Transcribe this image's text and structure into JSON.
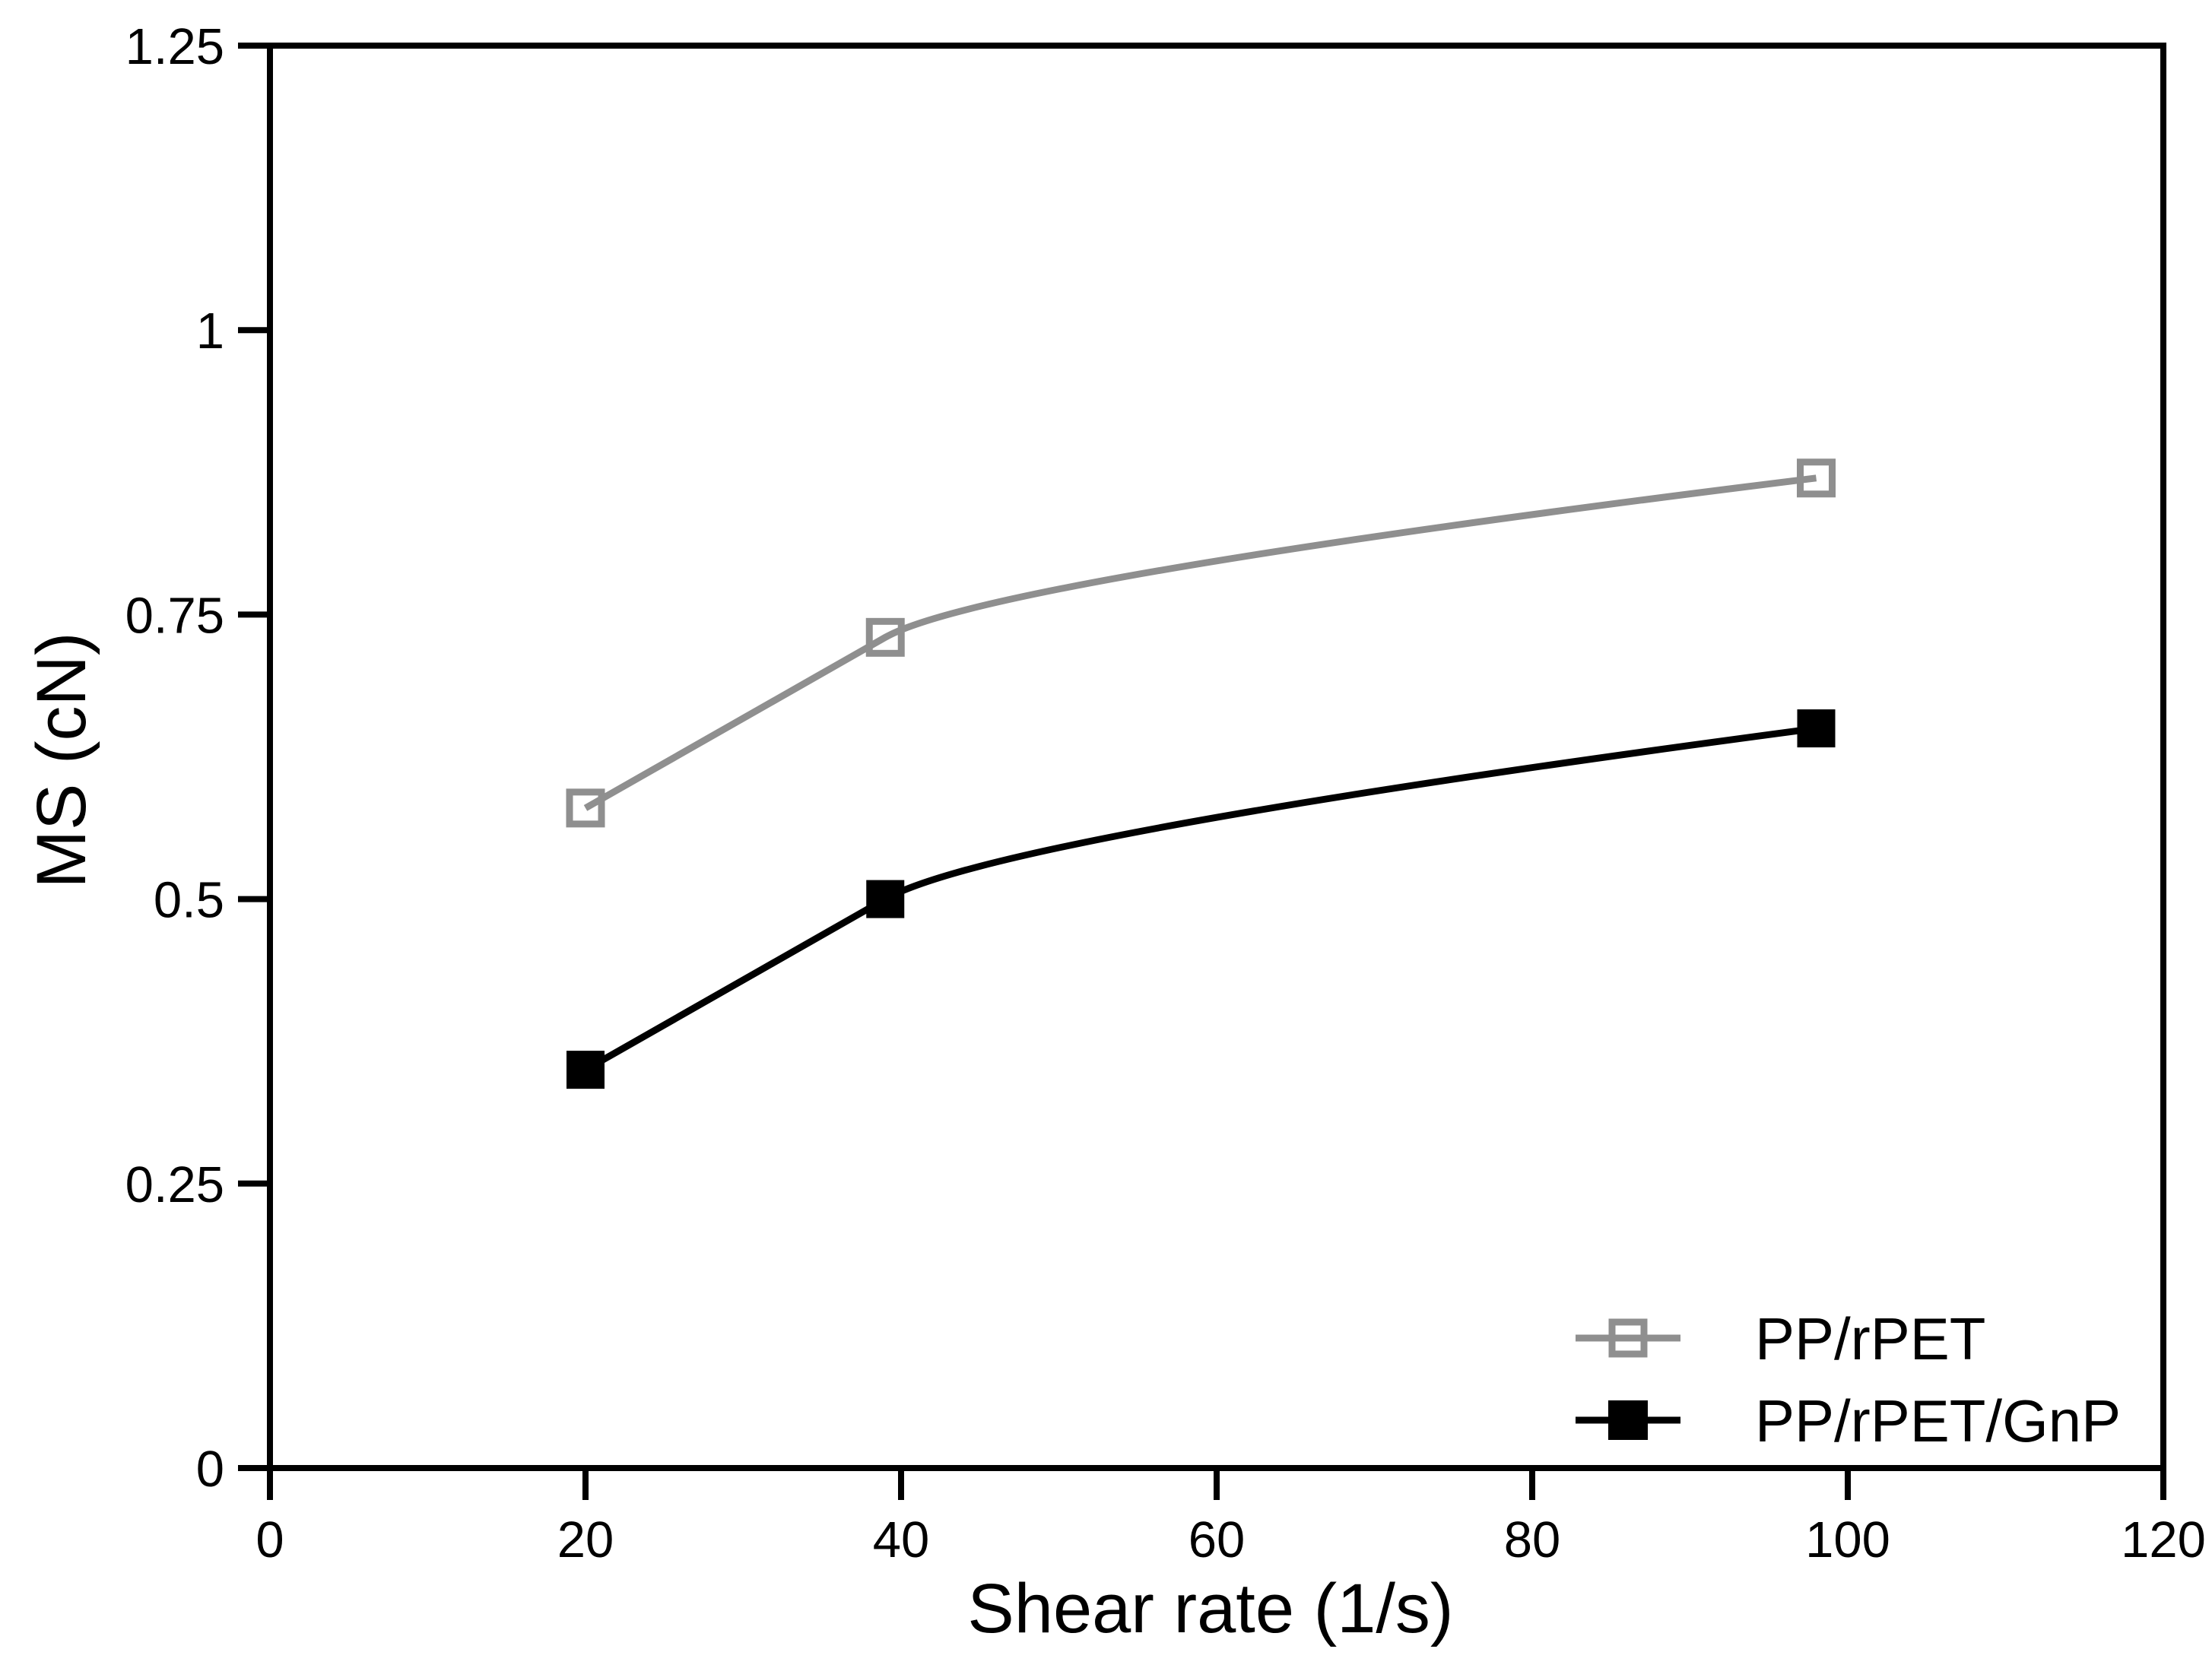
{
  "chart_data": {
    "type": "line",
    "title": "",
    "xlabel": "Shear rate (1/s)",
    "ylabel": "MS (cN)",
    "xlim": [
      0,
      120
    ],
    "ylim": [
      0,
      1.25
    ],
    "x_ticks": [
      0,
      20,
      40,
      60,
      80,
      100,
      120
    ],
    "x_tick_labels": [
      "0",
      "20",
      "40",
      "60",
      "80",
      "100",
      "120"
    ],
    "y_ticks": [
      0,
      0.25,
      0.5,
      0.75,
      1,
      1.25
    ],
    "y_tick_labels": [
      "0",
      "0.25",
      "0.5",
      "0.75",
      "1",
      "1.25"
    ],
    "grid": false,
    "legend_position": "inside-bottom-right",
    "background": "#ffffff",
    "axis_color": "#000000",
    "x": [
      20,
      39,
      98
    ],
    "series": [
      {
        "name": "PP/rPET",
        "color": "#8f8f8f",
        "marker": "open-square",
        "values": [
          0.58,
          0.73,
          0.87
        ]
      },
      {
        "name": "PP/rPET/GnP",
        "color": "#000000",
        "marker": "filled-square",
        "values": [
          0.35,
          0.5,
          0.65
        ]
      }
    ]
  }
}
